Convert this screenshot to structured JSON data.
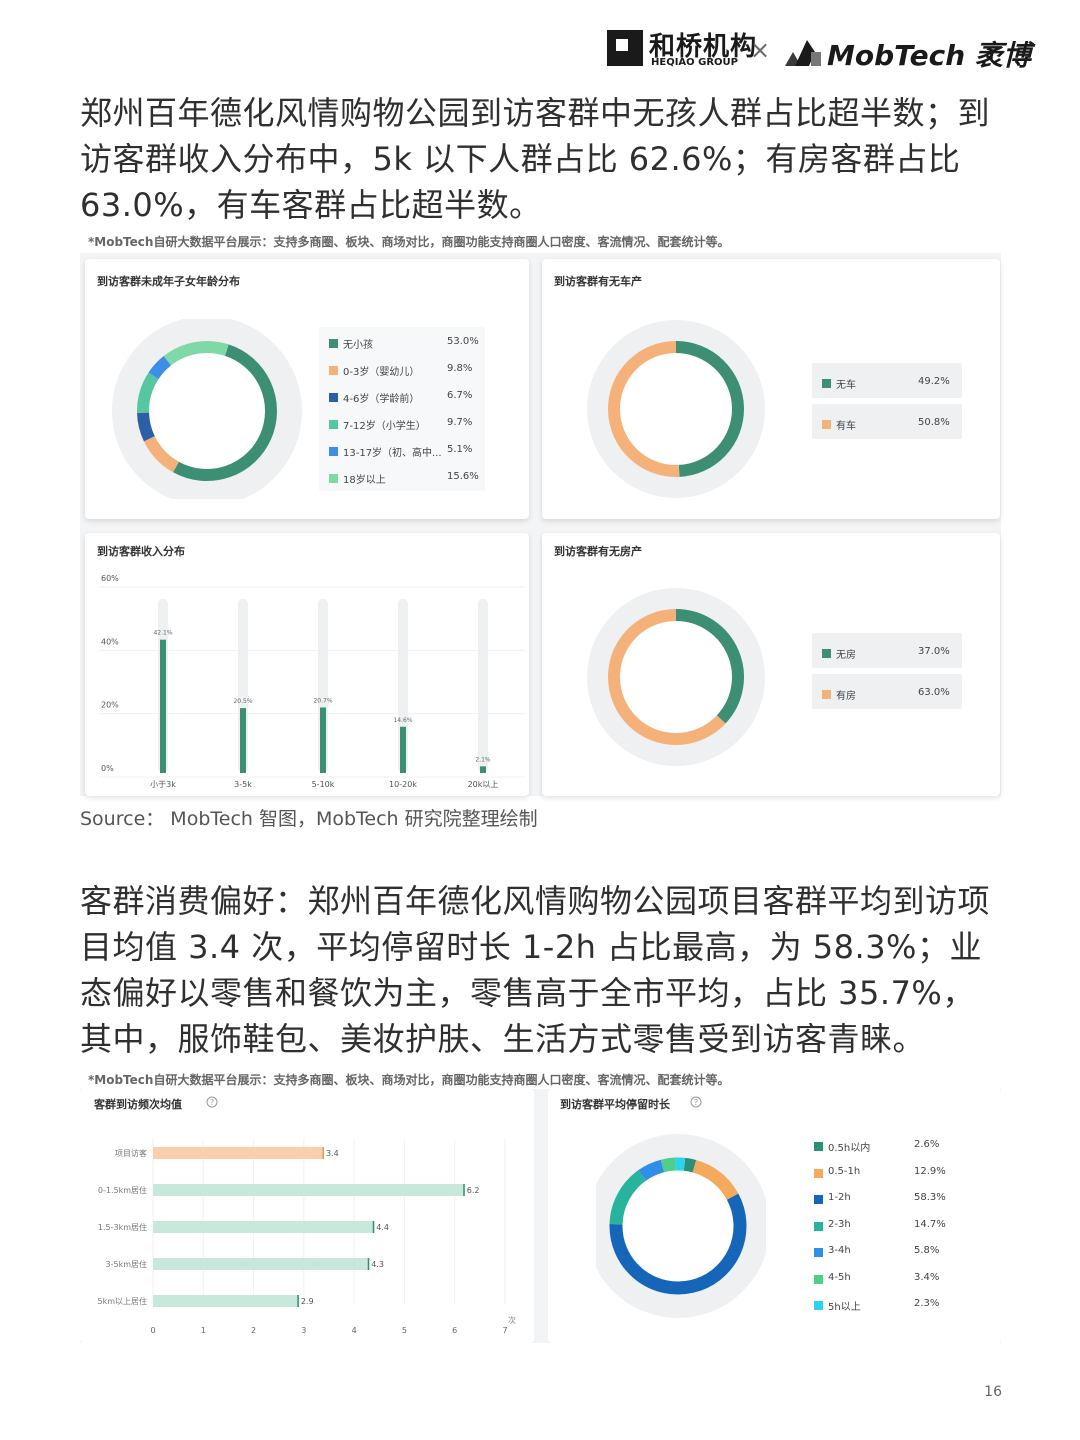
{
  "header": {
    "heqiao_name": "和桥机构",
    "heqiao_sub": "HEQIAO GROUP",
    "separator": "×",
    "mobtech_name": "MobTech 袤博"
  },
  "para1": "郑州百年德化风情购物公园到访客群中无孩人群占比超半数；到访客群收入分布中，5k 以下人群占比 62.6%；有房客群占比 63.0%，有车客群占比超半数。",
  "note1": "*MobTech自研大数据平台展示：支持多商圈、板块、商场对比，商圈功能支持商圈人口密度、客流情况、配套统计等。",
  "source": "Source： MobTech 智图，MobTech 研究院整理绘制",
  "para2": "客群消费偏好：郑州百年德化风情购物公园项目客群平均到访项目均值 3.4 次，平均停留时长 1-2h 占比最高，为 58.3%；业态偏好以零售和餐饮为主，零售高于全市平均，占比 35.7%，其中，服饰鞋包、美妆护肤、生活方式零售受到访客青睐。",
  "note2": "*MobTech自研大数据平台展示：支持多商圈、板块、商场对比，商圈功能支持商圈人口密度、客流情况、配套统计等。",
  "page_number": "16",
  "chart_data": [
    {
      "type": "pie",
      "title": "到访客群未成年子女年龄分布",
      "categories": [
        "无小孩",
        "0-3岁（婴幼儿）",
        "4-6岁（学龄前）",
        "7-12岁（小学生）",
        "13-17岁（初、高中...",
        "18岁以上"
      ],
      "labels": [
        "53.0%",
        "9.8%",
        "6.7%",
        "9.7%",
        "5.1%",
        "15.6%"
      ],
      "values": [
        53.0,
        9.8,
        6.7,
        9.7,
        5.1,
        15.6
      ],
      "colors": [
        "#3d8f74",
        "#f4b27a",
        "#2b5fa8",
        "#56c7a0",
        "#3d8ee6",
        "#7fd9a6"
      ]
    },
    {
      "type": "pie",
      "title": "到访客群有无车产",
      "categories": [
        "无车",
        "有车"
      ],
      "labels": [
        "49.2%",
        "50.8%"
      ],
      "values": [
        49.2,
        50.8
      ],
      "colors": [
        "#3d8f74",
        "#f4b27a"
      ]
    },
    {
      "type": "bar",
      "title": "到访客群收入分布",
      "categories": [
        "小于3k",
        "3-5k",
        "5-10k",
        "10-20k",
        "20k以上"
      ],
      "values": [
        42.1,
        20.5,
        20.7,
        14.6,
        2.1
      ],
      "labels": [
        "42.1%",
        "20.5%",
        "20.7%",
        "14.6%",
        "2.1%"
      ],
      "yticks": [
        "0%",
        "20%",
        "40%",
        "60%"
      ],
      "ylim": [
        0,
        60
      ],
      "color": "#3d8f74"
    },
    {
      "type": "pie",
      "title": "到访客群有无房产",
      "categories": [
        "无房",
        "有房"
      ],
      "labels": [
        "37.0%",
        "63.0%"
      ],
      "values": [
        37.0,
        63.0
      ],
      "colors": [
        "#3d8f74",
        "#f4b27a"
      ]
    },
    {
      "type": "bar",
      "orientation": "horizontal",
      "title": "客群到访频次均值",
      "categories": [
        "项目访客",
        "0-1.5km居住",
        "1.5-3km居住",
        "3-5km居住",
        "5km以上居住"
      ],
      "values": [
        3.4,
        6.2,
        4.4,
        4.3,
        2.9
      ],
      "labels": [
        "3.4",
        "6.2",
        "4.4",
        "4.3",
        "2.9"
      ],
      "xticks": [
        "0",
        "1",
        "2",
        "3",
        "4",
        "5",
        "6",
        "7"
      ],
      "xunit": "次",
      "xlim": [
        0,
        7
      ],
      "colors": [
        "#f9cfae",
        "#c9e8dc",
        "#c9e8dc",
        "#c9e8dc",
        "#c9e8dc"
      ]
    },
    {
      "type": "pie",
      "title": "到访客群平均停留时长",
      "categories": [
        "0.5h以内",
        "0.5-1h",
        "1-2h",
        "2-3h",
        "3-4h",
        "4-5h",
        "5h以上"
      ],
      "labels": [
        "2.6%",
        "12.9%",
        "58.3%",
        "14.7%",
        "5.8%",
        "3.4%",
        "2.3%"
      ],
      "values": [
        2.6,
        12.9,
        58.3,
        14.7,
        5.8,
        3.4,
        2.3
      ],
      "colors": [
        "#2e8f79",
        "#f4a95c",
        "#1565b8",
        "#26b49c",
        "#2f8fe8",
        "#4fd08a",
        "#2ad3ee"
      ]
    }
  ]
}
